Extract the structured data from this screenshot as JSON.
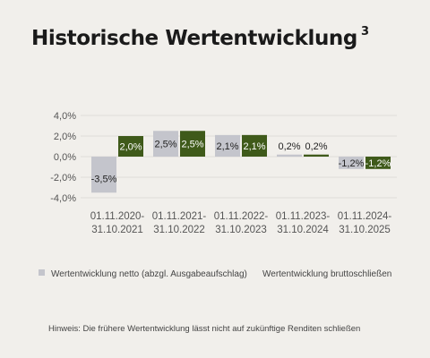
{
  "header": {
    "title": "Historische Wertentwicklung",
    "footnote": "3"
  },
  "legend": {
    "netto": "Wertentwicklung netto (abzgl. Ausgabeaufschlag)",
    "brutto": "Wertentwicklung bruttoschließen"
  },
  "note": "Hinweis: Die frühere Wertentwicklung lässt nicht auf zukünftige Renditen schließen",
  "colors": {
    "netto": "#c4c5cc",
    "brutto": "#3f5a1a",
    "grid": "#e0ded9"
  },
  "chart_data": {
    "type": "bar",
    "categories": [
      [
        "01.11.2020-",
        "31.10.2021"
      ],
      [
        "01.11.2021-",
        "31.10.2022"
      ],
      [
        "01.11.2022-",
        "31.10.2023"
      ],
      [
        "01.11.2023-",
        "31.10.2024"
      ],
      [
        "01.11.2024-",
        "31.10.2025"
      ]
    ],
    "series": [
      {
        "name": "Wertentwicklung netto (abzgl. Ausgabeaufschlag)",
        "values": [
          -3.5,
          2.5,
          2.1,
          0.2,
          -1.2
        ],
        "labels": [
          "-3,5%",
          "2,5%",
          "2,1%",
          "0,2%",
          "-1,2%"
        ]
      },
      {
        "name": "Wertentwicklung bruttoschließen",
        "values": [
          2.0,
          2.5,
          2.1,
          0.2,
          -1.2
        ],
        "labels": [
          "2,0%",
          "2,5%",
          "2,1%",
          "0,2%",
          "-1,2%"
        ]
      }
    ],
    "yticks": [
      4,
      2,
      0,
      -2,
      -4
    ],
    "ytick_labels": [
      "4,0%",
      "2,0%",
      "0,0%",
      "-2,0%",
      "-4,0%"
    ],
    "ylim": [
      -4,
      4
    ],
    "grid": true
  }
}
